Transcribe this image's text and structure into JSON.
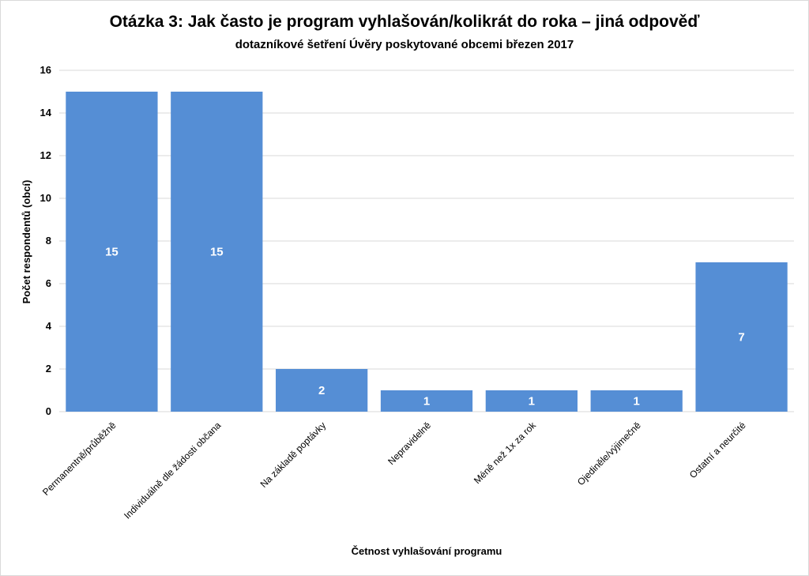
{
  "chart_data": {
    "type": "bar",
    "title": "Otázka 3: Jak často je program vyhlašován/kolikrát do roka – jiná odpověď",
    "subtitle": "dotazníkové šetření Úvěry poskytované obcemi březen 2017",
    "xlabel": "Četnost vyhlašování programu",
    "ylabel": "Počet respondentů (obcí)",
    "categories": [
      "Permanentně/průběžně",
      "Individuálně dle žádosti občana",
      "Na základě poptávky",
      "Nepravidelně",
      "Méně než 1x za rok",
      "Ojediněle/výjimečně",
      "Ostatní a neurčité"
    ],
    "values": [
      15,
      15,
      2,
      1,
      1,
      1,
      7
    ],
    "ylim": [
      0,
      16
    ],
    "yticks": [
      0,
      2,
      4,
      6,
      8,
      10,
      12,
      14,
      16
    ],
    "data_labels": true,
    "grid": true,
    "legend": "none",
    "colors": {
      "bar": "#558ED5",
      "grid": "#d9d9d9",
      "label": "#ffffff"
    }
  }
}
